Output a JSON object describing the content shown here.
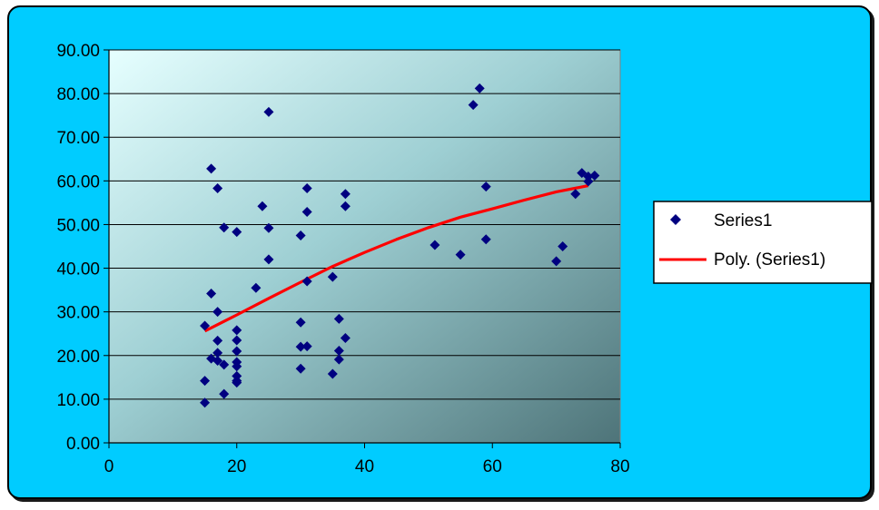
{
  "chart_data": {
    "type": "scatter",
    "title": "",
    "xlabel": "",
    "ylabel": "",
    "xlim": [
      0,
      80
    ],
    "ylim": [
      0,
      90
    ],
    "x_ticks": [
      0,
      20,
      40,
      60,
      80
    ],
    "y_ticks": [
      0,
      10,
      20,
      30,
      40,
      50,
      60,
      70,
      80,
      90
    ],
    "x_tick_labels": [
      "0",
      "20",
      "40",
      "60",
      "80"
    ],
    "y_tick_labels": [
      "0.00",
      "10.00",
      "20.00",
      "30.00",
      "40.00",
      "50.00",
      "60.00",
      "70.00",
      "80.00",
      "90.00"
    ],
    "grid": "horizontal",
    "legend_position": "right",
    "series": [
      {
        "name": "Series1",
        "marker": "diamond",
        "color": "#000080",
        "points": [
          [
            15,
            9.2
          ],
          [
            15,
            14.2
          ],
          [
            15,
            26.8
          ],
          [
            16,
            62.8
          ],
          [
            16,
            34.2
          ],
          [
            16,
            19.3
          ],
          [
            17,
            58.3
          ],
          [
            17,
            30.0
          ],
          [
            17,
            23.4
          ],
          [
            17,
            20.6
          ],
          [
            17,
            18.8
          ],
          [
            18,
            49.3
          ],
          [
            18,
            17.9
          ],
          [
            18,
            11.2
          ],
          [
            20,
            48.3
          ],
          [
            20,
            25.8
          ],
          [
            20,
            23.5
          ],
          [
            20,
            21.0
          ],
          [
            20,
            18.5
          ],
          [
            20,
            17.5
          ],
          [
            20,
            15.3
          ],
          [
            20,
            14.2
          ],
          [
            20,
            13.8
          ],
          [
            23,
            35.5
          ],
          [
            24,
            54.2
          ],
          [
            25,
            75.8
          ],
          [
            25,
            49.2
          ],
          [
            25,
            42.0
          ],
          [
            30,
            47.5
          ],
          [
            30,
            27.6
          ],
          [
            30,
            22.0
          ],
          [
            30,
            17.0
          ],
          [
            31,
            58.3
          ],
          [
            31,
            52.9
          ],
          [
            31,
            37.0
          ],
          [
            31,
            22.1
          ],
          [
            35,
            38.0
          ],
          [
            35,
            15.8
          ],
          [
            36,
            28.4
          ],
          [
            36,
            21.1
          ],
          [
            36,
            19.1
          ],
          [
            37,
            57.0
          ],
          [
            37,
            54.2
          ],
          [
            37,
            24.0
          ],
          [
            51,
            45.3
          ],
          [
            55,
            43.1
          ],
          [
            57,
            77.4
          ],
          [
            58,
            81.2
          ],
          [
            59,
            58.7
          ],
          [
            59,
            46.6
          ],
          [
            70,
            41.6
          ],
          [
            71,
            45.0
          ],
          [
            73,
            57.0
          ],
          [
            74,
            61.8
          ],
          [
            75,
            61.0
          ],
          [
            75,
            59.9
          ],
          [
            76,
            61.2
          ]
        ]
      },
      {
        "name": "Poly. (Series1)",
        "type": "line",
        "color": "#ff0000",
        "points": [
          [
            15,
            25.6
          ],
          [
            20,
            29.3
          ],
          [
            25,
            33.1
          ],
          [
            30,
            36.8
          ],
          [
            35,
            40.4
          ],
          [
            40,
            43.6
          ],
          [
            45,
            46.6
          ],
          [
            50,
            49.3
          ],
          [
            55,
            51.7
          ],
          [
            60,
            53.6
          ],
          [
            65,
            55.6
          ],
          [
            70,
            57.5
          ],
          [
            75,
            58.9
          ]
        ]
      }
    ]
  }
}
